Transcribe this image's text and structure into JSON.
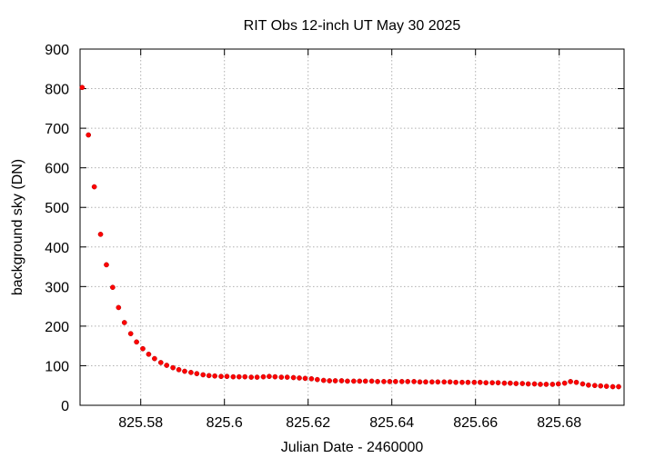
{
  "chart_data": {
    "type": "scatter",
    "title": "RIT Obs 12-inch UT May 30 2025",
    "xlabel": "Julian Date - 2460000",
    "ylabel": "background sky (DN)",
    "xlim": [
      825.5655,
      825.6955
    ],
    "ylim": [
      0,
      900
    ],
    "xticks": [
      825.58,
      825.6,
      825.62,
      825.64,
      825.66,
      825.68
    ],
    "xtick_labels": [
      "825.58",
      "825.6",
      "825.62",
      "825.64",
      "825.66",
      "825.68"
    ],
    "yticks": [
      0,
      100,
      200,
      300,
      400,
      500,
      600,
      700,
      800,
      900
    ],
    "ytick_labels": [
      "0",
      "100",
      "200",
      "300",
      "400",
      "500",
      "600",
      "700",
      "800",
      "900"
    ],
    "grid": true,
    "marker_color": "#ff0000",
    "series": [
      {
        "x": [
          825.566,
          825.5675,
          825.5689,
          825.5704,
          825.5718,
          825.5733,
          825.5747,
          825.5761,
          825.5776,
          825.579,
          825.5805,
          825.5819,
          825.5833,
          825.5848,
          825.5862,
          825.5877,
          825.5891,
          825.5905,
          825.592,
          825.5934,
          825.5949,
          825.5963,
          825.5977,
          825.5992,
          825.6006,
          825.6021,
          825.6035,
          825.6049,
          825.6064,
          825.6078,
          825.6093,
          825.6107,
          825.6121,
          825.6136,
          825.615,
          825.6165,
          825.6179,
          825.6193,
          825.6208,
          825.6222,
          825.6237,
          825.6251,
          825.6265,
          825.628,
          825.6294,
          825.6309,
          825.6323,
          825.6337,
          825.6352,
          825.6366,
          825.6381,
          825.6395,
          825.6409,
          825.6424,
          825.6438,
          825.6453,
          825.6467,
          825.6481,
          825.6496,
          825.651,
          825.6525,
          825.6539,
          825.6553,
          825.6568,
          825.6582,
          825.6597,
          825.6611,
          825.6625,
          825.664,
          825.6654,
          825.6669,
          825.6683,
          825.6697,
          825.6712,
          825.6726,
          825.6741,
          825.6755,
          825.6769,
          825.6784,
          825.6798,
          825.6813,
          825.6827,
          825.6841,
          825.6856,
          825.687,
          825.6885,
          825.6899,
          825.6913,
          825.6928,
          825.6942
        ],
        "y": [
          803,
          683,
          552,
          432,
          355,
          298,
          247,
          209,
          181,
          160,
          143,
          129,
          118,
          108,
          101,
          95,
          90,
          86,
          83,
          80,
          77,
          75,
          74,
          73,
          73,
          72,
          72,
          72,
          71,
          71,
          72,
          73,
          72,
          71,
          71,
          70,
          69,
          68,
          67,
          65,
          63,
          62,
          62,
          62,
          61,
          61,
          61,
          61,
          61,
          60,
          60,
          60,
          60,
          60,
          60,
          60,
          59,
          59,
          59,
          59,
          59,
          59,
          58,
          58,
          58,
          58,
          58,
          57,
          57,
          57,
          56,
          56,
          55,
          55,
          54,
          54,
          53,
          53,
          53,
          54,
          56,
          60,
          58,
          54,
          51,
          50,
          49,
          48,
          47,
          47
        ]
      }
    ]
  }
}
